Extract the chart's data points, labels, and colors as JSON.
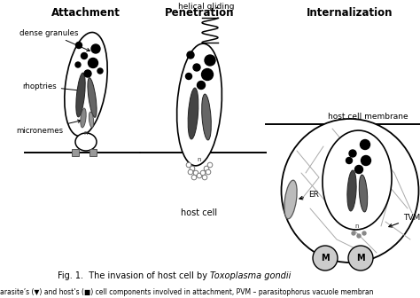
{
  "title_attachment": "Attachment",
  "title_penetration": "Penetration",
  "title_internalization": "Internalization",
  "label_dense_granules": "dense granules",
  "label_rhoptries": "rhoptries",
  "label_micronemes": "micronemes",
  "label_helical_gliding": "helical gliding",
  "label_host_cell_membrane": "host cell membrane",
  "label_host_cell": "host cell",
  "label_ER": "ER",
  "label_TVMN": "TVMN",
  "label_M": "M",
  "fig_caption_normal1": "Fig. 1.  The invasion of host cell by ",
  "fig_caption_italic": "Toxoplasma gondii",
  "fig_caption_normal2": ".",
  "fig_caption2": "arasite’s (▼) and host’s (■) cell components involved in attachment, PVM – parasitophorus vacuole membran",
  "bg_color": "#ffffff",
  "lc": "#000000"
}
